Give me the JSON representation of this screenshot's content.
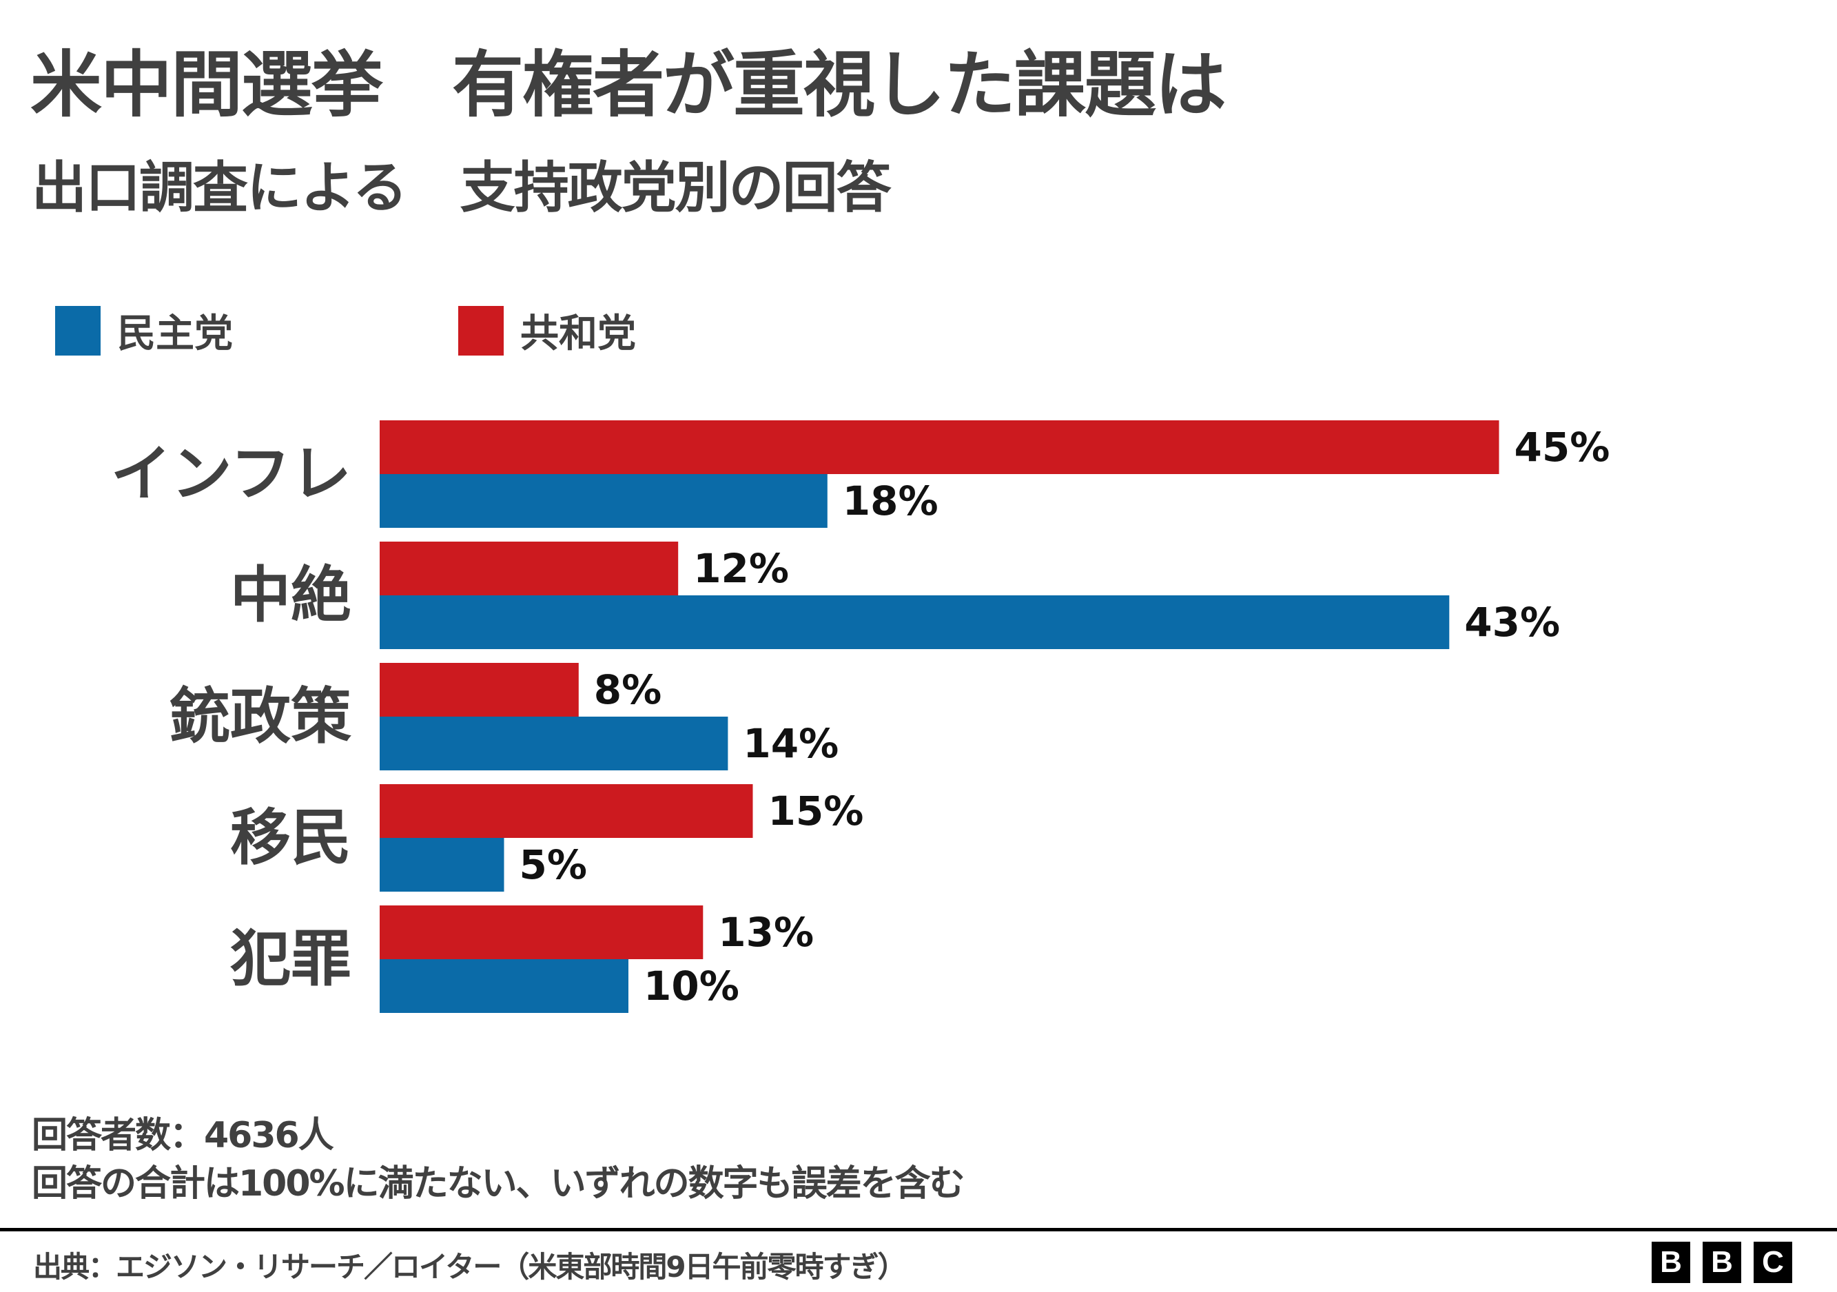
{
  "header": {
    "title": "米中間選挙　有権者が重視した課題は",
    "subtitle": "出口調査による　支持政党別の回答"
  },
  "chart_data": {
    "type": "bar",
    "orientation": "horizontal",
    "categories": [
      "インフレ",
      "中絶",
      "銃政策",
      "移民",
      "犯罪"
    ],
    "series": [
      {
        "name": "共和党",
        "color": "#cc1a1f",
        "values": [
          45,
          12,
          8,
          15,
          13
        ]
      },
      {
        "name": "民主党",
        "color": "#0b6ba8",
        "values": [
          18,
          43,
          14,
          5,
          10
        ]
      }
    ],
    "value_suffix": "%",
    "legend_placement": "top-left",
    "grid": false,
    "xlim": [
      0,
      45
    ]
  },
  "legend": [
    {
      "label": "民主党",
      "color": "#0b6ba8"
    },
    {
      "label": "共和党",
      "color": "#cc1a1f"
    }
  ],
  "footer": {
    "note1": "回答者数：4636人",
    "note2": "回答の合計は100%に満たない、いずれの数字も誤差を含む",
    "source": "出典：エジソン・リサーチ／ロイター（米東部時間9日午前零時すぎ）",
    "logo": [
      "B",
      "B",
      "C"
    ]
  }
}
